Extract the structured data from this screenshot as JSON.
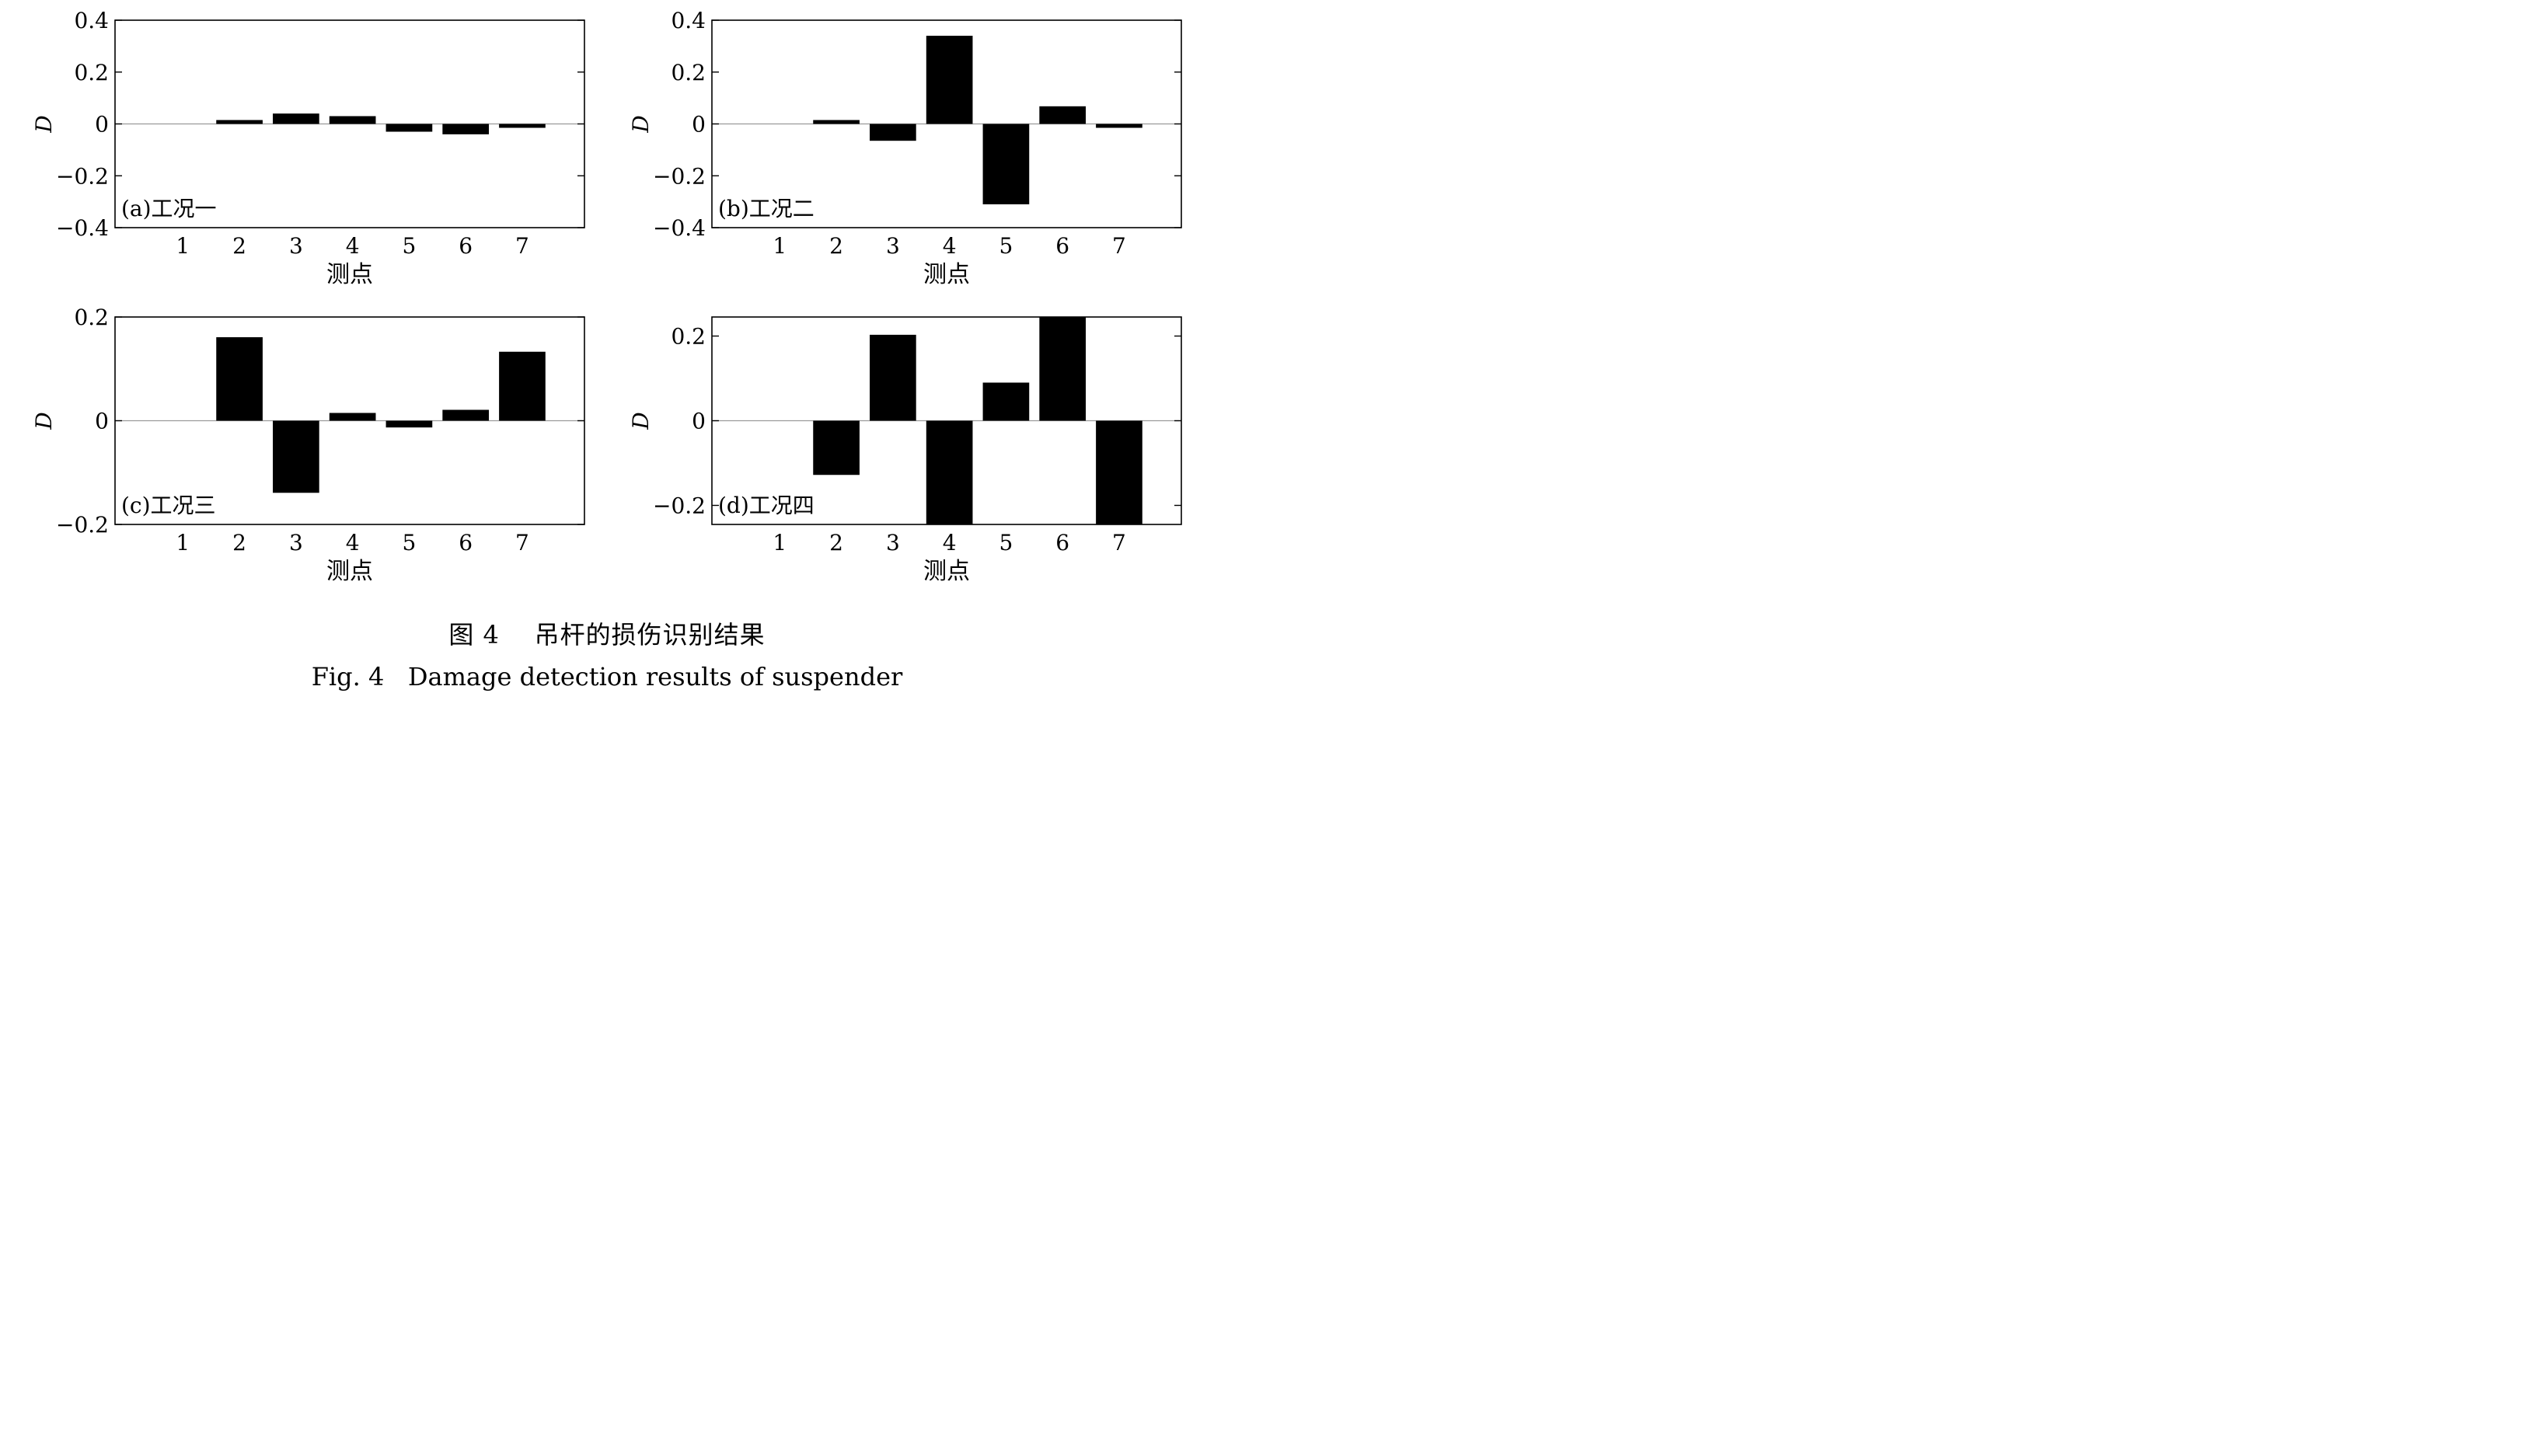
{
  "chart_data": [
    {
      "type": "bar",
      "panel_label": "(a)工况一",
      "xlabel": "测点",
      "ylabel": "D",
      "categories": [
        "1",
        "2",
        "3",
        "4",
        "5",
        "6",
        "7"
      ],
      "values": [
        0,
        0.015,
        0.04,
        0.03,
        -0.03,
        -0.04,
        -0.015
      ],
      "ylim": [
        -0.4,
        0.4
      ],
      "yticks": [
        0.4,
        0.2,
        0,
        -0.2,
        -0.4
      ],
      "ytick_labels": [
        "0.4",
        "0.2",
        "0",
        "−0.2",
        "−0.4"
      ],
      "grid": false
    },
    {
      "type": "bar",
      "panel_label": "(b)工况二",
      "xlabel": "测点",
      "ylabel": "D",
      "categories": [
        "1",
        "2",
        "3",
        "4",
        "5",
        "6",
        "7"
      ],
      "values": [
        0,
        0.015,
        -0.065,
        0.34,
        -0.31,
        0.068,
        -0.015
      ],
      "ylim": [
        -0.4,
        0.4
      ],
      "yticks": [
        0.4,
        0.2,
        0,
        -0.2,
        -0.4
      ],
      "ytick_labels": [
        "0.4",
        "0.2",
        "0",
        "−0.2",
        "−0.4"
      ],
      "grid": false
    },
    {
      "type": "bar",
      "panel_label": "(c)工况三",
      "xlabel": "测点",
      "ylabel": "D",
      "categories": [
        "1",
        "2",
        "3",
        "4",
        "5",
        "6",
        "7"
      ],
      "values": [
        0,
        0.161,
        -0.139,
        0.015,
        -0.013,
        0.021,
        0.133
      ],
      "ylim": [
        -0.2,
        0.2
      ],
      "yticks": [
        0.2,
        0,
        -0.2
      ],
      "ytick_labels": [
        "0.2",
        "0",
        "−0.2"
      ],
      "grid": false
    },
    {
      "type": "bar",
      "panel_label": "(d)工况四",
      "xlabel": "测点",
      "ylabel": "D",
      "categories": [
        "1",
        "2",
        "3",
        "4",
        "5",
        "6",
        "7"
      ],
      "values": [
        0,
        -0.128,
        0.203,
        -0.245,
        0.09,
        0.245,
        -0.245
      ],
      "ylim": [
        -0.245,
        0.245
      ],
      "yticks": [
        0.2,
        0,
        -0.2
      ],
      "ytick_labels": [
        "0.2",
        "0",
        "−0.2"
      ],
      "grid": false
    }
  ],
  "caption": {
    "cn": "图 4    吊杆的损伤识别结果",
    "en": "Fig. 4   Damage detection results of suspender"
  },
  "colors": {
    "bar": "#000000",
    "frame": "#000000",
    "zero_line": "#9a9a9a",
    "background": "#ffffff"
  }
}
